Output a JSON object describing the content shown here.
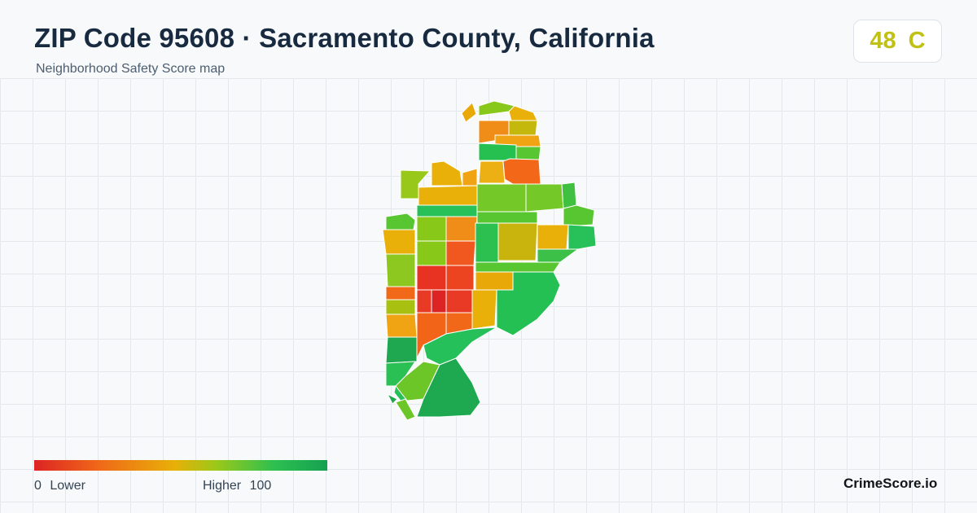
{
  "header": {
    "title": "ZIP Code 95608 · Sacramento County, California",
    "subtitle": "Neighborhood Safety Score map"
  },
  "score": {
    "value": "48",
    "grade": "C",
    "color": "#c0c015"
  },
  "legend": {
    "min": "0",
    "min_label": "Lower",
    "max_label": "Higher",
    "max": "100",
    "colors": [
      "#dd2424",
      "#f06818",
      "#e8b008",
      "#9cc818",
      "#2cc050",
      "#16a050"
    ]
  },
  "brand": "CrimeScore.io"
}
